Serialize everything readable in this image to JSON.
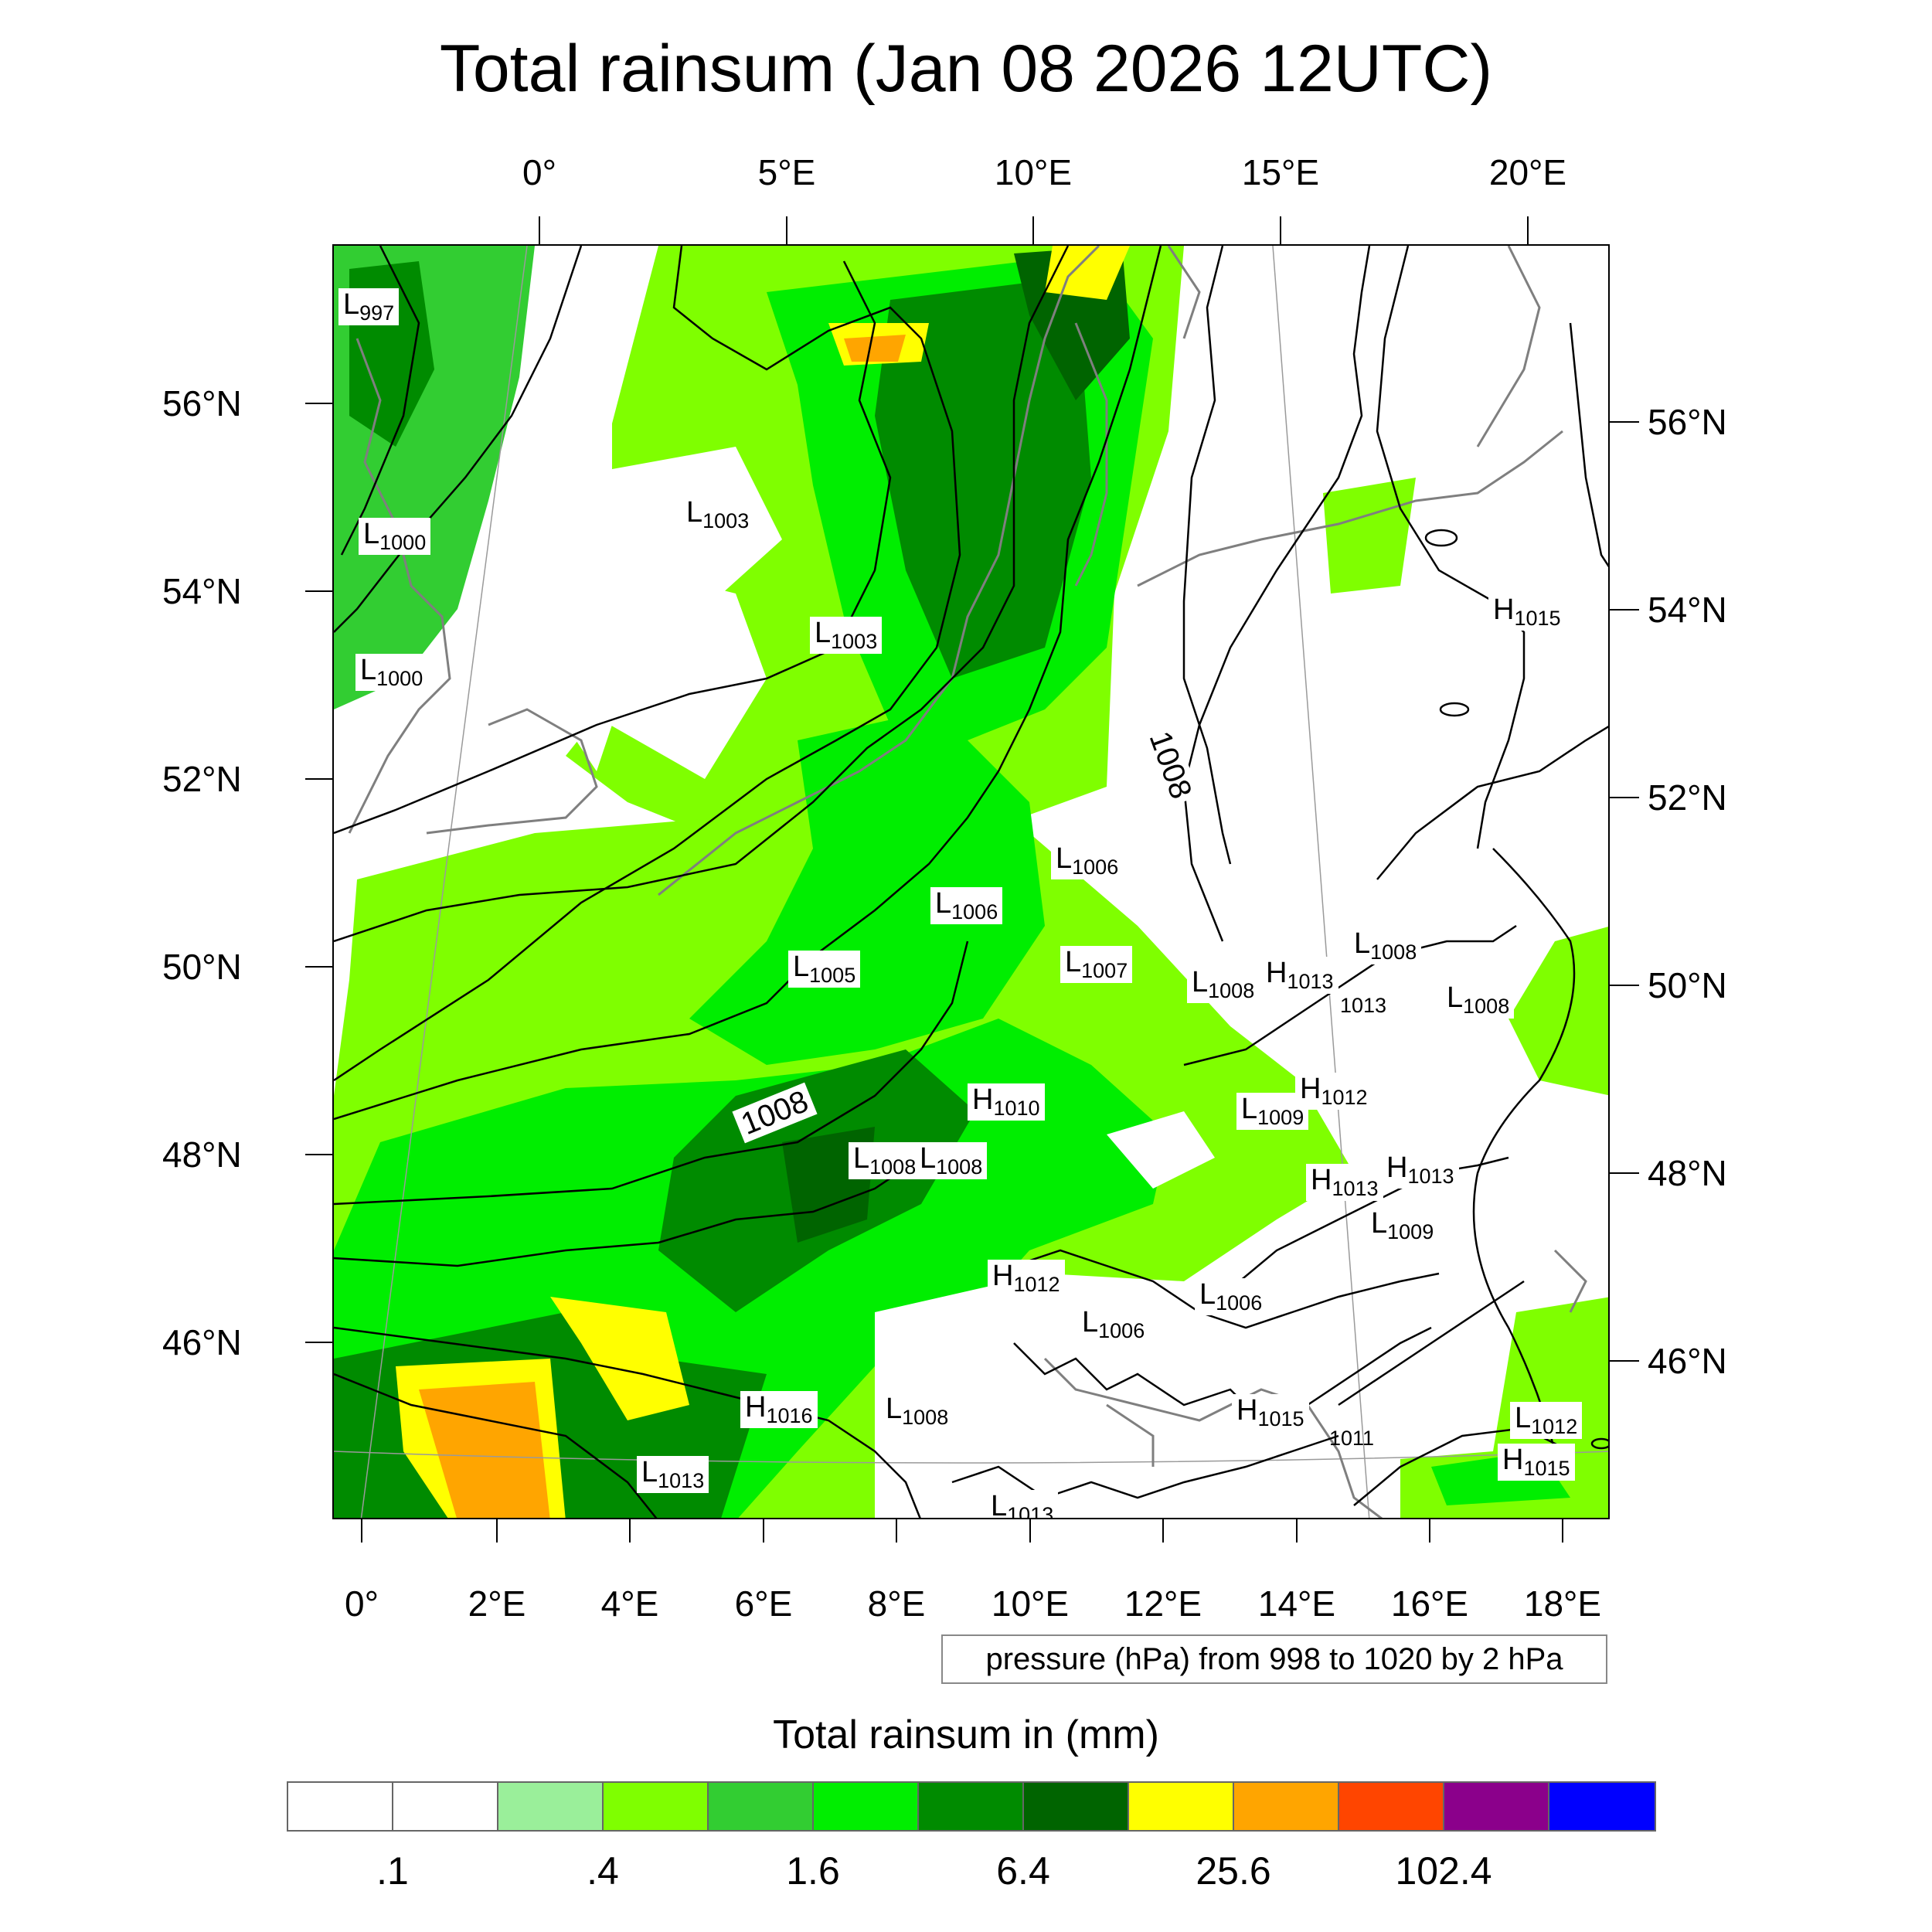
{
  "title": "Total rainsum (Jan 08 2026 12UTC)",
  "top_lon_labels": [
    "0°",
    "5°E",
    "10°E",
    "15°E",
    "20°E"
  ],
  "bottom_lon_labels": [
    "0°",
    "2°E",
    "4°E",
    "6°E",
    "8°E",
    "10°E",
    "12°E",
    "14°E",
    "16°E",
    "18°E"
  ],
  "left_lat_labels": [
    "56°N",
    "54°N",
    "52°N",
    "50°N",
    "48°N",
    "46°N"
  ],
  "right_lat_labels": [
    "56°N",
    "54°N",
    "52°N",
    "50°N",
    "48°N",
    "46°N"
  ],
  "pressure_note": "pressure (hPa) from 998 to 1020 by 2 hPa",
  "colorbar": {
    "title": "Total rainsum in (mm)",
    "colors": [
      "#ffffff",
      "#ffffff",
      "#9aef9a",
      "#7fff00",
      "#32cd32",
      "#00ee00",
      "#008b00",
      "#006400",
      "#ffff00",
      "#ffa500",
      "#ff4500",
      "#8b008b",
      "#0000ff"
    ],
    "labels": [
      ".1",
      ".4",
      "1.6",
      "6.4",
      "25.6",
      "102.4"
    ]
  },
  "pressure_labels": [
    {
      "kind": "L",
      "value": "997"
    },
    {
      "kind": "L",
      "value": "1000"
    },
    {
      "kind": "L",
      "value": "1000"
    },
    {
      "kind": "L",
      "value": "1003"
    },
    {
      "kind": "L",
      "value": "1003"
    },
    {
      "kind": "L",
      "value": "1006"
    },
    {
      "kind": "L",
      "value": "1006"
    },
    {
      "kind": "L",
      "value": "1005"
    },
    {
      "kind": "L",
      "value": "1007"
    },
    {
      "kind": "L",
      "value": "1008"
    },
    {
      "kind": "H",
      "value": "1013"
    },
    {
      "kind": "L",
      "value": "1008"
    },
    {
      "kind": "L",
      "value": "1008"
    },
    {
      "kind": "H",
      "value": "1015"
    },
    {
      "kind": "H",
      "value": "1010"
    },
    {
      "kind": "L",
      "value": "1008"
    },
    {
      "kind": "L",
      "value": "1008"
    },
    {
      "kind": "L",
      "value": "1009"
    },
    {
      "kind": "H",
      "value": "1012"
    },
    {
      "kind": "H",
      "value": "1013"
    },
    {
      "kind": "H",
      "value": "1013"
    },
    {
      "kind": "L",
      "value": "1009"
    },
    {
      "kind": "H",
      "value": "1012"
    },
    {
      "kind": "L",
      "value": "1006"
    },
    {
      "kind": "L",
      "value": "1006"
    },
    {
      "kind": "H",
      "value": "1016"
    },
    {
      "kind": "L",
      "value": "1008"
    },
    {
      "kind": "L",
      "value": "1013"
    },
    {
      "kind": "H",
      "value": "1015"
    },
    {
      "kind": "L",
      "value": "1012"
    },
    {
      "kind": "H",
      "value": "1015"
    },
    {
      "kind": "L",
      "value": "1013"
    }
  ],
  "isobar_labels": [
    "1008",
    "1008"
  ],
  "minor_labels": [
    "1013",
    "1011"
  ]
}
